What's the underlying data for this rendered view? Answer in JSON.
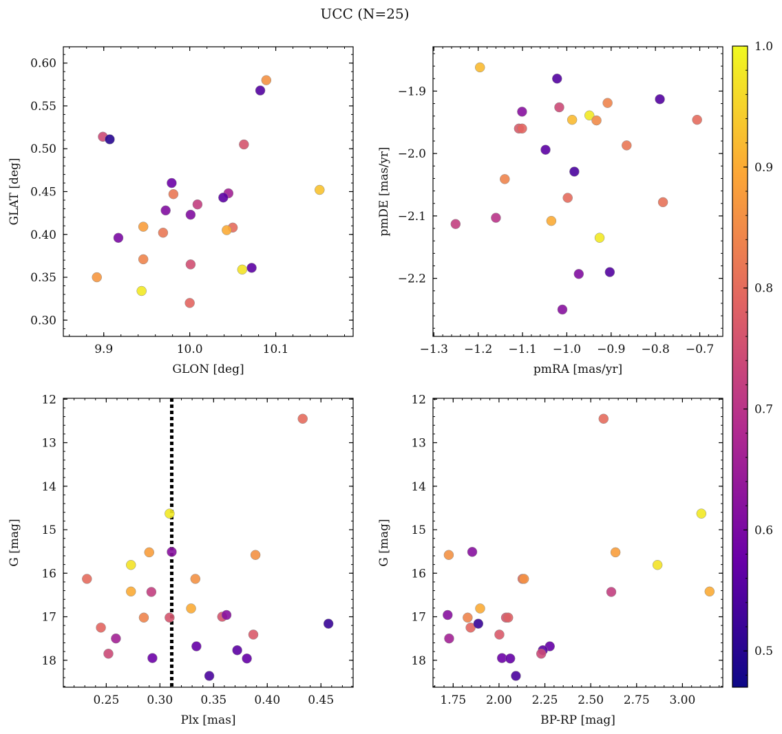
{
  "figure": {
    "title": "UCC (N=25)"
  },
  "colorbar": {
    "vmin": 0.47,
    "vmax": 1.0,
    "ticks": [
      0.5,
      0.6,
      0.7,
      0.8,
      0.9,
      1.0
    ],
    "tick_labels": [
      "0.5",
      "0.6",
      "0.7",
      "0.8",
      "0.9",
      "1.0"
    ],
    "colormap": "plasma"
  },
  "colors": {
    "plasma_stops": [
      "#0d0887",
      "#6a00a8",
      "#b12a90",
      "#e16462",
      "#fca636",
      "#f0f921"
    ],
    "marker_edge": "#888888",
    "vline": "#000000"
  },
  "chart_data": [
    {
      "type": "scatter",
      "xlabel": "GLON [deg]",
      "ylabel": "GLAT [deg]",
      "xlim": [
        9.853,
        10.19
      ],
      "ylim": [
        0.281,
        0.619
      ],
      "invert_y": false,
      "xticks": [
        9.9,
        10.0,
        10.1
      ],
      "xtick_labels": [
        "9.9",
        "10.0",
        "10.1"
      ],
      "yticks": [
        0.3,
        0.35,
        0.4,
        0.45,
        0.5,
        0.55,
        0.6
      ],
      "ytick_labels": [
        "0.30",
        "0.35",
        "0.40",
        "0.45",
        "0.50",
        "0.55",
        "0.60"
      ],
      "points": [
        {
          "x": 10.089,
          "y": 0.58,
          "c": 0.86
        },
        {
          "x": 10.082,
          "y": 0.568,
          "c": 0.55
        },
        {
          "x": 9.899,
          "y": 0.514,
          "c": 0.74
        },
        {
          "x": 9.907,
          "y": 0.511,
          "c": 0.5
        },
        {
          "x": 10.063,
          "y": 0.505,
          "c": 0.76
        },
        {
          "x": 9.979,
          "y": 0.46,
          "c": 0.58
        },
        {
          "x": 9.981,
          "y": 0.447,
          "c": 0.82
        },
        {
          "x": 10.045,
          "y": 0.448,
          "c": 0.66
        },
        {
          "x": 10.039,
          "y": 0.443,
          "c": 0.56
        },
        {
          "x": 10.009,
          "y": 0.435,
          "c": 0.72
        },
        {
          "x": 9.972,
          "y": 0.428,
          "c": 0.61
        },
        {
          "x": 10.001,
          "y": 0.423,
          "c": 0.61
        },
        {
          "x": 10.151,
          "y": 0.452,
          "c": 0.93
        },
        {
          "x": 9.946,
          "y": 0.409,
          "c": 0.88
        },
        {
          "x": 10.05,
          "y": 0.408,
          "c": 0.8
        },
        {
          "x": 10.043,
          "y": 0.405,
          "c": 0.9
        },
        {
          "x": 9.969,
          "y": 0.402,
          "c": 0.82
        },
        {
          "x": 9.917,
          "y": 0.396,
          "c": 0.6
        },
        {
          "x": 9.946,
          "y": 0.371,
          "c": 0.84
        },
        {
          "x": 10.001,
          "y": 0.365,
          "c": 0.75
        },
        {
          "x": 10.072,
          "y": 0.361,
          "c": 0.56
        },
        {
          "x": 10.061,
          "y": 0.359,
          "c": 0.97
        },
        {
          "x": 9.892,
          "y": 0.35,
          "c": 0.87
        },
        {
          "x": 9.944,
          "y": 0.334,
          "c": 0.98
        },
        {
          "x": 10.0,
          "y": 0.32,
          "c": 0.79
        }
      ]
    },
    {
      "type": "scatter",
      "xlabel": "pmRA [mas/yr]",
      "ylabel": "pmDE [mas/yr]",
      "xlim": [
        -1.302,
        -0.648
      ],
      "ylim": [
        -2.293,
        -1.829
      ],
      "invert_y": false,
      "xticks": [
        -1.3,
        -1.2,
        -1.1,
        -1.0,
        -0.9,
        -0.8,
        -0.7
      ],
      "xtick_labels": [
        "−1.3",
        "−1.2",
        "−1.1",
        "−1.0",
        "−0.9",
        "−0.8",
        "−0.7"
      ],
      "yticks": [
        -2.2,
        -2.1,
        -2.0,
        -1.9
      ],
      "ytick_labels": [
        "−2.2",
        "−2.1",
        "−2.0",
        "−1.9"
      ],
      "points": [
        {
          "x": -1.196,
          "y": -1.862,
          "c": 0.92
        },
        {
          "x": -1.022,
          "y": -1.88,
          "c": 0.55
        },
        {
          "x": -0.79,
          "y": -1.913,
          "c": 0.55
        },
        {
          "x": -0.908,
          "y": -1.919,
          "c": 0.84
        },
        {
          "x": -1.017,
          "y": -1.926,
          "c": 0.74
        },
        {
          "x": -1.101,
          "y": -1.933,
          "c": 0.62
        },
        {
          "x": -0.949,
          "y": -1.939,
          "c": 0.98
        },
        {
          "x": -0.988,
          "y": -1.946,
          "c": 0.92
        },
        {
          "x": -0.933,
          "y": -1.947,
          "c": 0.85
        },
        {
          "x": -0.706,
          "y": -1.946,
          "c": 0.8
        },
        {
          "x": -1.108,
          "y": -1.96,
          "c": 0.77
        },
        {
          "x": -1.101,
          "y": -1.96,
          "c": 0.79
        },
        {
          "x": -0.865,
          "y": -1.987,
          "c": 0.82
        },
        {
          "x": -1.048,
          "y": -1.994,
          "c": 0.56
        },
        {
          "x": -0.983,
          "y": -2.029,
          "c": 0.54
        },
        {
          "x": -1.14,
          "y": -2.041,
          "c": 0.84
        },
        {
          "x": -0.998,
          "y": -2.071,
          "c": 0.8
        },
        {
          "x": -0.783,
          "y": -2.078,
          "c": 0.81
        },
        {
          "x": -1.035,
          "y": -2.108,
          "c": 0.9
        },
        {
          "x": -1.251,
          "y": -2.113,
          "c": 0.72
        },
        {
          "x": -1.16,
          "y": -2.103,
          "c": 0.7
        },
        {
          "x": -0.926,
          "y": -2.135,
          "c": 0.98
        },
        {
          "x": -0.903,
          "y": -2.19,
          "c": 0.55
        },
        {
          "x": -0.973,
          "y": -2.193,
          "c": 0.61
        },
        {
          "x": -1.01,
          "y": -2.25,
          "c": 0.62
        }
      ]
    },
    {
      "type": "scatter",
      "xlabel": "Plx [mas]",
      "ylabel": "G [mag]",
      "xlim": [
        0.21,
        0.48
      ],
      "ylim": [
        18.62,
        11.98
      ],
      "invert_y": true,
      "xticks": [
        0.25,
        0.3,
        0.35,
        0.4,
        0.45
      ],
      "xtick_labels": [
        "0.25",
        "0.30",
        "0.35",
        "0.40",
        "0.45"
      ],
      "yticks": [
        12,
        13,
        14,
        15,
        16,
        17,
        18
      ],
      "ytick_labels": [
        "12",
        "13",
        "14",
        "15",
        "16",
        "17",
        "18"
      ],
      "vline": {
        "x": 0.311,
        "style": "dotted"
      },
      "points": [
        {
          "x": 0.433,
          "y": 12.45,
          "c": 0.8
        },
        {
          "x": 0.309,
          "y": 14.63,
          "c": 0.98
        },
        {
          "x": 0.29,
          "y": 15.52,
          "c": 0.88
        },
        {
          "x": 0.311,
          "y": 15.51,
          "c": 0.62
        },
        {
          "x": 0.389,
          "y": 15.58,
          "c": 0.86
        },
        {
          "x": 0.273,
          "y": 15.81,
          "c": 0.97
        },
        {
          "x": 0.232,
          "y": 16.13,
          "c": 0.8
        },
        {
          "x": 0.333,
          "y": 16.13,
          "c": 0.86
        },
        {
          "x": 0.273,
          "y": 16.42,
          "c": 0.9
        },
        {
          "x": 0.292,
          "y": 16.43,
          "c": 0.72
        },
        {
          "x": 0.329,
          "y": 16.81,
          "c": 0.9
        },
        {
          "x": 0.285,
          "y": 17.02,
          "c": 0.84
        },
        {
          "x": 0.309,
          "y": 17.02,
          "c": 0.76
        },
        {
          "x": 0.358,
          "y": 17.0,
          "c": 0.76
        },
        {
          "x": 0.362,
          "y": 16.96,
          "c": 0.62
        },
        {
          "x": 0.245,
          "y": 17.25,
          "c": 0.79
        },
        {
          "x": 0.457,
          "y": 17.16,
          "c": 0.52
        },
        {
          "x": 0.387,
          "y": 17.41,
          "c": 0.77
        },
        {
          "x": 0.259,
          "y": 17.5,
          "c": 0.66
        },
        {
          "x": 0.334,
          "y": 17.68,
          "c": 0.57
        },
        {
          "x": 0.372,
          "y": 17.77,
          "c": 0.56
        },
        {
          "x": 0.252,
          "y": 17.85,
          "c": 0.74
        },
        {
          "x": 0.293,
          "y": 17.95,
          "c": 0.58
        },
        {
          "x": 0.381,
          "y": 17.96,
          "c": 0.57
        },
        {
          "x": 0.346,
          "y": 18.36,
          "c": 0.54
        }
      ]
    },
    {
      "type": "scatter",
      "xlabel": "BP-RP [mag]",
      "ylabel": "G [mag]",
      "xlim": [
        1.64,
        3.22
      ],
      "ylim": [
        18.62,
        11.98
      ],
      "invert_y": true,
      "xticks": [
        1.75,
        2.0,
        2.25,
        2.5,
        2.75,
        3.0
      ],
      "xtick_labels": [
        "1.75",
        "2.00",
        "2.25",
        "2.50",
        "2.75",
        "3.00"
      ],
      "yticks": [
        12,
        13,
        14,
        15,
        16,
        17,
        18
      ],
      "ytick_labels": [
        "12",
        "13",
        "14",
        "15",
        "16",
        "17",
        "18"
      ],
      "points": [
        {
          "x": 2.57,
          "y": 12.45,
          "c": 0.8
        },
        {
          "x": 3.103,
          "y": 14.63,
          "c": 0.98
        },
        {
          "x": 1.854,
          "y": 15.51,
          "c": 0.62
        },
        {
          "x": 1.726,
          "y": 15.58,
          "c": 0.86
        },
        {
          "x": 2.635,
          "y": 15.52,
          "c": 0.88
        },
        {
          "x": 2.864,
          "y": 15.81,
          "c": 0.97
        },
        {
          "x": 2.128,
          "y": 16.13,
          "c": 0.8
        },
        {
          "x": 2.136,
          "y": 16.13,
          "c": 0.86
        },
        {
          "x": 2.612,
          "y": 16.43,
          "c": 0.72
        },
        {
          "x": 3.148,
          "y": 16.42,
          "c": 0.9
        },
        {
          "x": 1.897,
          "y": 16.81,
          "c": 0.9
        },
        {
          "x": 1.72,
          "y": 16.96,
          "c": 0.62
        },
        {
          "x": 1.829,
          "y": 17.02,
          "c": 0.84
        },
        {
          "x": 2.038,
          "y": 17.02,
          "c": 0.76
        },
        {
          "x": 2.05,
          "y": 17.02,
          "c": 0.78
        },
        {
          "x": 1.845,
          "y": 17.25,
          "c": 0.79
        },
        {
          "x": 1.887,
          "y": 17.16,
          "c": 0.52
        },
        {
          "x": 2.002,
          "y": 17.41,
          "c": 0.77
        },
        {
          "x": 1.728,
          "y": 17.5,
          "c": 0.66
        },
        {
          "x": 2.277,
          "y": 17.68,
          "c": 0.57
        },
        {
          "x": 2.239,
          "y": 17.77,
          "c": 0.56
        },
        {
          "x": 2.23,
          "y": 17.85,
          "c": 0.74
        },
        {
          "x": 2.016,
          "y": 17.95,
          "c": 0.58
        },
        {
          "x": 2.061,
          "y": 17.96,
          "c": 0.57
        },
        {
          "x": 2.092,
          "y": 18.36,
          "c": 0.54
        }
      ]
    }
  ]
}
